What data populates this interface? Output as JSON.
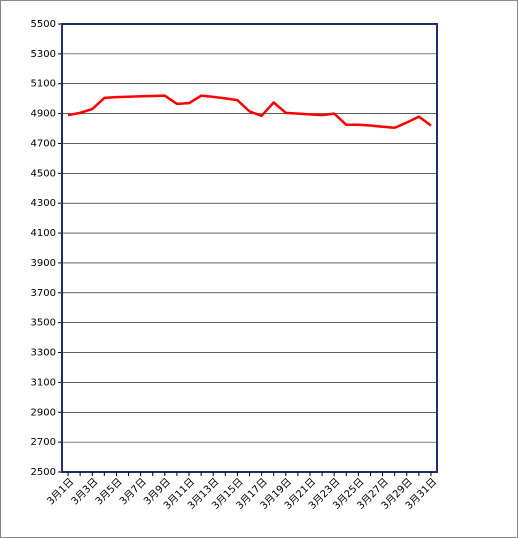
{
  "chart_data": {
    "type": "line",
    "categories": [
      "3月1日",
      null,
      "3月3日",
      null,
      "3月5日",
      null,
      "3月7日",
      null,
      "3月9日",
      null,
      "3月11日",
      null,
      "3月13日",
      null,
      "3月15日",
      null,
      "3月17日",
      null,
      "3月19日",
      null,
      "3月21日",
      null,
      "3月23日",
      null,
      "3月25日",
      null,
      "3月27日",
      null,
      "3月29日",
      null,
      "3月31日"
    ],
    "values": [
      4890,
      4905,
      4930,
      5005,
      5010,
      5013,
      5016,
      5018,
      5020,
      4965,
      4970,
      5020,
      5012,
      5002,
      4990,
      4915,
      4885,
      4975,
      4905,
      4900,
      4895,
      4890,
      4900,
      4825,
      4825,
      4820,
      4812,
      4805,
      4840,
      4880,
      4820
    ],
    "color": "#ff0000",
    "ylim": [
      2500,
      5500
    ],
    "yticks": [
      2500,
      2700,
      2900,
      3100,
      3300,
      3500,
      3700,
      3900,
      4100,
      4300,
      4500,
      4700,
      4900,
      5100,
      5300,
      5500
    ],
    "grid": true
  }
}
